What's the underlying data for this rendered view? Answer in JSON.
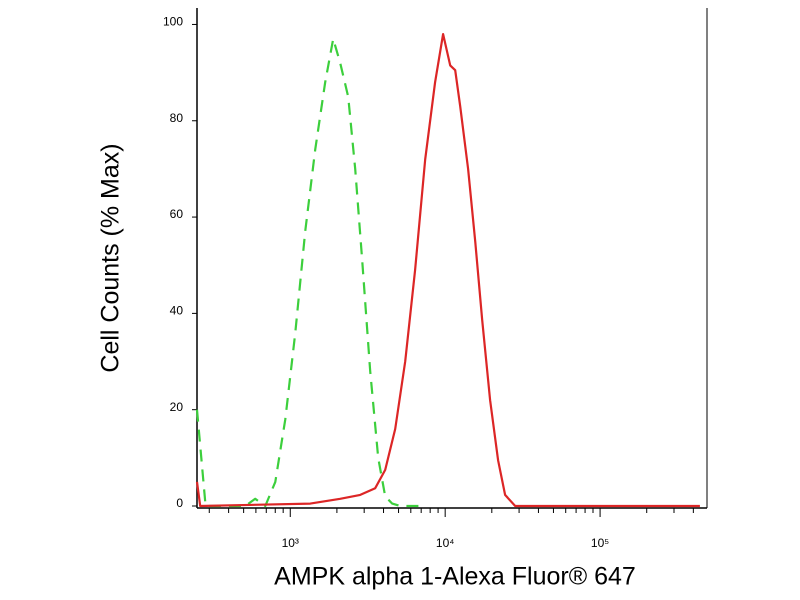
{
  "chart_data": {
    "type": "line",
    "xlabel": "AMPK alpha 1-Alexa Fluor® 647",
    "ylabel": "Cell Counts (% Max)",
    "xscale": "log",
    "xlim": [
      250,
      490000
    ],
    "ylim": [
      0,
      103
    ],
    "xticks": [
      {
        "value": 1000,
        "label": "10³"
      },
      {
        "value": 10000,
        "label": "10⁴"
      },
      {
        "value": 100000,
        "label": "10⁵"
      }
    ],
    "xminorticks": [
      300,
      400,
      500,
      600,
      700,
      800,
      900,
      2000,
      3000,
      4000,
      5000,
      6000,
      7000,
      8000,
      9000,
      20000,
      30000,
      40000,
      50000,
      60000,
      70000,
      80000,
      90000,
      200000,
      300000,
      400000
    ],
    "yticks": [
      0,
      20,
      40,
      60,
      80,
      100
    ],
    "series": [
      {
        "color": "#3ccf3c",
        "dashed": true,
        "x": [
          250,
          284,
          513,
          594,
          690,
          800,
          929,
          1077,
          1249,
          1449,
          1681,
          1893,
          2102,
          2367,
          2625,
          2915,
          3281,
          3697,
          4100,
          4550,
          5130,
          6900
        ],
        "values": [
          20,
          0,
          0,
          1.5,
          0,
          5,
          18,
          36,
          57,
          74,
          88,
          97,
          92,
          85,
          70,
          51,
          28,
          10,
          2,
          0.5,
          0,
          0
        ]
      },
      {
        "color": "#dc2626",
        "dashed": false,
        "x": [
          250,
          262,
          1346,
          2102,
          2829,
          3532,
          4100,
          4755,
          5520,
          6400,
          7430,
          8610,
          9700,
          10770,
          11600,
          12500,
          14070,
          15620,
          17340,
          19510,
          21960,
          24380,
          28300,
          441000
        ],
        "values": [
          5,
          0,
          0.5,
          1.5,
          2.3,
          3.7,
          7.5,
          16,
          30,
          49,
          72,
          88,
          98,
          91.5,
          90.5,
          83,
          70,
          55,
          38.6,
          22,
          9.5,
          2.3,
          0,
          0
        ]
      }
    ]
  }
}
